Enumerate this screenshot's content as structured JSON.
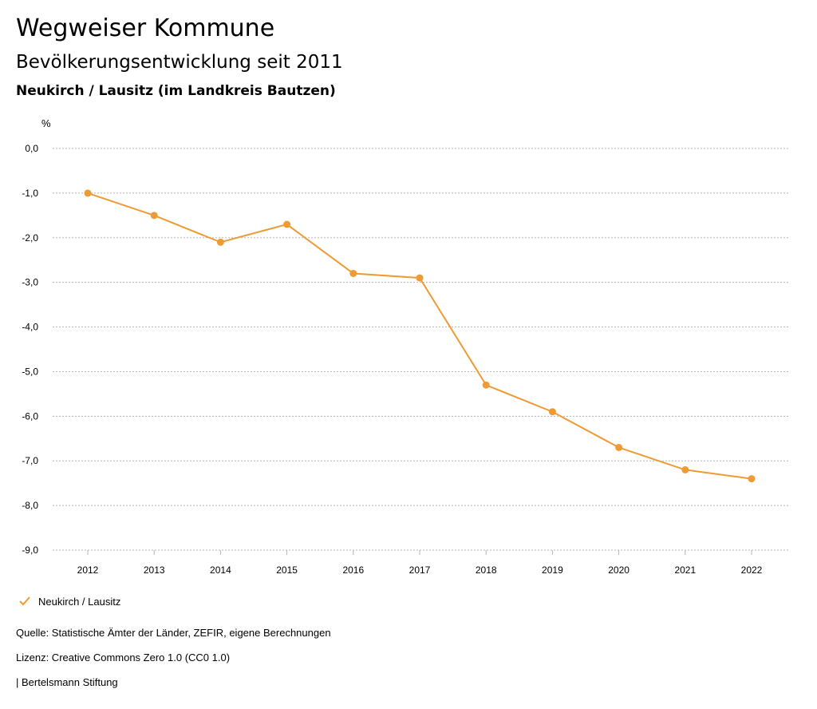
{
  "header": {
    "title": "Wegweiser Kommune",
    "subtitle": "Bevölkerungsentwicklung seit 2011",
    "municipality": "Neukirch / Lausitz (im Landkreis Bautzen)"
  },
  "chart_data": {
    "type": "line",
    "ylabel": "%",
    "ylim": [
      -9,
      0
    ],
    "yticks": [
      "0,0",
      "-1,0",
      "-2,0",
      "-3,0",
      "-4,0",
      "-5,0",
      "-6,0",
      "-7,0",
      "-8,0",
      "-9,0"
    ],
    "ytick_values": [
      0,
      -1,
      -2,
      -3,
      -4,
      -5,
      -6,
      -7,
      -8,
      -9
    ],
    "categories": [
      "2012",
      "2013",
      "2014",
      "2015",
      "2016",
      "2017",
      "2018",
      "2019",
      "2020",
      "2021",
      "2022"
    ],
    "series": [
      {
        "name": "Neukirch / Lausitz",
        "color": "#ee9b34",
        "values": [
          -1.0,
          -1.5,
          -2.1,
          -1.7,
          -2.8,
          -2.9,
          -5.3,
          -5.9,
          -6.7,
          -7.2,
          -7.4
        ]
      }
    ],
    "grid": true,
    "legend": "bottom-left"
  },
  "footer": {
    "source": "Quelle: Statistische Ämter der Länder, ZEFIR, eigene Berechnungen",
    "license": "Lizenz: Creative Commons Zero 1.0 (CC0 1.0)",
    "organization": "| Bertelsmann Stiftung"
  }
}
